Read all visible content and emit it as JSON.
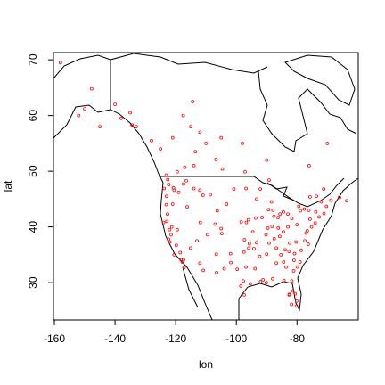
{
  "chart_data": {
    "type": "scatter",
    "x_label": "lon",
    "y_label": "lat",
    "color": "#ff0000",
    "xlim": [
      -160.3,
      -59.8
    ],
    "ylim": [
      23.3,
      71.3
    ],
    "xticks": [
      -160,
      -140,
      -120,
      -100,
      -80
    ],
    "yticks": [
      30,
      40,
      50,
      60,
      70
    ],
    "x": [
      -122.4,
      -122.3,
      -123,
      -121.5,
      -118.2,
      -117.2,
      -119.8,
      -120.5,
      -123.1,
      -122.7,
      -124,
      -121.9,
      -122,
      -117.4,
      -116.2,
      -119.5,
      -117.8,
      -122.6,
      -123.8,
      -121,
      -118.5,
      -120.7,
      -122.9,
      -117.4,
      -121.3,
      -115.1,
      -112,
      -111.9,
      -110.9,
      -106.6,
      -105,
      -104.8,
      -108.6,
      -111,
      -114,
      -106.3,
      -112,
      -116.5,
      -113,
      -109.5,
      -107,
      -119,
      -120.5,
      -104,
      -101.9,
      -106.5,
      -97.5,
      -95.9,
      -97.3,
      -96,
      -93.6,
      -93.3,
      -96.8,
      -100.8,
      -98.5,
      -97.7,
      -95.4,
      -96.8,
      -94.6,
      -92.3,
      -90.2,
      -89.4,
      -87.9,
      -87.6,
      -86.2,
      -84.5,
      -83,
      -83,
      -81.7,
      -85.7,
      -86.8,
      -90,
      -90.1,
      -91.2,
      -88,
      -86.8,
      -84.4,
      -81,
      -80.8,
      -78.6,
      -77.4,
      -77,
      -76.6,
      -75.2,
      -74,
      -73.8,
      -71.1,
      -72.7,
      -76.1,
      -78.9,
      -80,
      -82.5,
      -81.4,
      -80.2,
      -81.7,
      -84.3,
      -80.1,
      -81.8,
      -82.6,
      -80.6,
      -79.9,
      -81.1,
      -83.6,
      -85.3,
      -83.9,
      -82.6,
      -84.5,
      -85.6,
      -88.2,
      -89.6,
      -91.5,
      -92.1,
      -94.2,
      -92,
      -93.8,
      -97.4,
      -99.7,
      -101.8,
      -88.4,
      -86.2,
      -79,
      -76.3,
      -80.3,
      -77.6,
      -75.7,
      -82.4,
      -87.5,
      -89.2,
      -93.3,
      -95.7,
      -96.7,
      -98.4,
      -103.2,
      -72,
      -70.3,
      -68.8,
      -114,
      -113.5,
      -106.7,
      -104.6,
      -97.1,
      -123.1,
      -119.5,
      -117,
      -110,
      -115,
      -112,
      -125,
      -128,
      -117.5,
      -114.4,
      -98,
      -90,
      -89.2,
      -79.4,
      -75.7,
      -73.6,
      -71.2,
      -66,
      -63.6,
      -76,
      -70,
      -105,
      -121,
      -133,
      -135,
      -150,
      -147.7,
      -158,
      -152,
      -140,
      -145,
      -134.4,
      -138
    ],
    "y": [
      37.8,
      47.6,
      45.5,
      38.6,
      34.1,
      32.7,
      36.7,
      35,
      44,
      42.3,
      40.8,
      37.3,
      39.5,
      47.7,
      43.6,
      39.5,
      33.7,
      48.5,
      46.9,
      44.1,
      35.4,
      47,
      41,
      34.1,
      40,
      36.2,
      33.5,
      40.8,
      32.2,
      35.1,
      39.7,
      38.8,
      45.8,
      45.7,
      46.9,
      42.9,
      46.6,
      48.3,
      37.5,
      38.6,
      40.5,
      46.2,
      46.6,
      32.5,
      35.2,
      31.8,
      35.5,
      36.2,
      37.7,
      41.3,
      41.6,
      45,
      46.9,
      46.8,
      29.4,
      30.3,
      29.8,
      32.8,
      39.1,
      34.7,
      38.6,
      43.1,
      43,
      41.9,
      39.8,
      39.1,
      40,
      42.3,
      41.5,
      38.3,
      36.2,
      35.1,
      30,
      30.5,
      30.7,
      33.5,
      33.7,
      34,
      35.2,
      35.8,
      37.5,
      38.9,
      39.3,
      40,
      40.7,
      42.7,
      42.4,
      41.8,
      43,
      42.9,
      40.4,
      27.9,
      28.5,
      25.8,
      30.3,
      30.4,
      26.7,
      26.1,
      27.8,
      28,
      32.8,
      32.1,
      32.8,
      35,
      35.9,
      35.6,
      42.7,
      42.3,
      40.1,
      39.8,
      41.7,
      46.8,
      36.1,
      30.2,
      32.5,
      27.8,
      32.4,
      33.6,
      44.5,
      41.7,
      33.7,
      36.9,
      37.3,
      43.2,
      41.4,
      37.1,
      37.9,
      37.1,
      37.2,
      37,
      40.8,
      40.9,
      44.1,
      44.5,
      43.7,
      44.8,
      51,
      53.5,
      52.1,
      50.4,
      49.9,
      49.3,
      49.9,
      50.7,
      55,
      58,
      57,
      54,
      55.5,
      60,
      62.5,
      55,
      52,
      48.4,
      43.7,
      45.4,
      45.5,
      46.8,
      45.3,
      44.7,
      51,
      55,
      56,
      56,
      58,
      60.5,
      61.2,
      64.8,
      69.5,
      60,
      62,
      58,
      58.3,
      59.5
    ]
  }
}
